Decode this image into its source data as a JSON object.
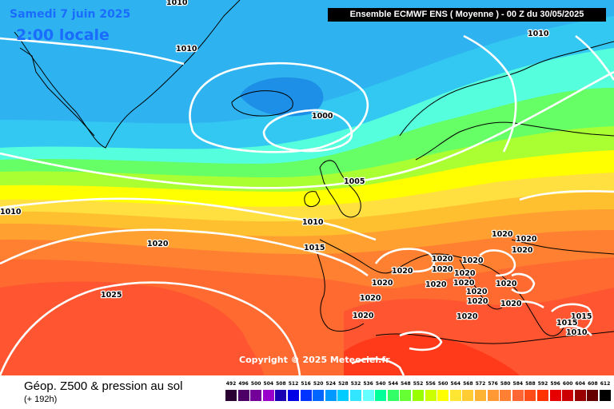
{
  "header": {
    "date": "Samedi 7 juin 2025",
    "local_time": "2:00 locale",
    "run_info": "Ensemble ECMWF ENS  ( Moyenne )  - 00 Z du 30/05/2025"
  },
  "footer": {
    "product_title": "Géop. Z500 & pression au sol",
    "lead_time": "(+ 192h)",
    "copyright": "Copyright © 2025 Meteociel.fr"
  },
  "legend": {
    "ticks": [
      "492",
      "496",
      "500",
      "504",
      "508",
      "512",
      "516",
      "520",
      "524",
      "528",
      "532",
      "536",
      "540",
      "544",
      "548",
      "552",
      "556",
      "560",
      "564",
      "568",
      "572",
      "576",
      "580",
      "584",
      "588",
      "592",
      "596",
      "600",
      "604",
      "608",
      "612"
    ],
    "colors": [
      "#2a0033",
      "#4d0066",
      "#730099",
      "#9900cc",
      "#1a00b3",
      "#0000e6",
      "#0033ff",
      "#0066ff",
      "#0099ff",
      "#00ccff",
      "#33e6ff",
      "#66ffff",
      "#00ff99",
      "#33ff66",
      "#66ff33",
      "#99ff00",
      "#ccff00",
      "#ffff00",
      "#ffe633",
      "#ffcc33",
      "#ffb333",
      "#ff9933",
      "#ff8033",
      "#ff6633",
      "#ff4d1a",
      "#ff3300",
      "#e60000",
      "#cc0000",
      "#990000",
      "#660000",
      "#000000"
    ]
  },
  "isobar_labels": [
    {
      "id": "t1",
      "text": "1010"
    },
    {
      "id": "t2",
      "text": "1010"
    },
    {
      "id": "t3",
      "text": "1010"
    },
    {
      "id": "t4",
      "text": "1000"
    },
    {
      "id": "t5",
      "text": "1005"
    },
    {
      "id": "t6",
      "text": "1010"
    },
    {
      "id": "t7",
      "text": "1010"
    },
    {
      "id": "t8",
      "text": "1020"
    },
    {
      "id": "t9",
      "text": "1015"
    },
    {
      "id": "t10",
      "text": "1025"
    },
    {
      "id": "t11",
      "text": "1020"
    },
    {
      "id": "t12",
      "text": "1020"
    },
    {
      "id": "t13",
      "text": "1020"
    },
    {
      "id": "t14",
      "text": "1020"
    },
    {
      "id": "t15",
      "text": "1020"
    },
    {
      "id": "t16",
      "text": "1020"
    },
    {
      "id": "t17",
      "text": "1020"
    },
    {
      "id": "t18",
      "text": "1020"
    },
    {
      "id": "t19",
      "text": "1020"
    },
    {
      "id": "t20",
      "text": "1020"
    },
    {
      "id": "t21",
      "text": "1020"
    },
    {
      "id": "t22",
      "text": "1020"
    },
    {
      "id": "t23",
      "text": "1020"
    },
    {
      "id": "t24",
      "text": "1020"
    },
    {
      "id": "t25",
      "text": "1020"
    },
    {
      "id": "t26",
      "text": "1020"
    },
    {
      "id": "t27",
      "text": "1015"
    },
    {
      "id": "t28",
      "text": "1015"
    },
    {
      "id": "t29",
      "text": "1010"
    },
    {
      "id": "t30",
      "text": "1020"
    },
    {
      "id": "t31",
      "text": "1020"
    }
  ]
}
